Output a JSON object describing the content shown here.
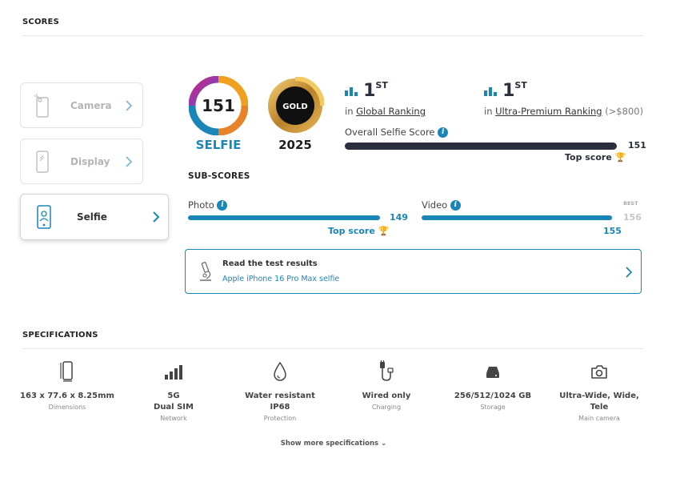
{
  "scores_section": {
    "title": "SCORES"
  },
  "categories": [
    {
      "label": "Camera",
      "icon": "camera-phone-icon",
      "active": false
    },
    {
      "label": "Display",
      "icon": "display-phone-icon",
      "active": false
    },
    {
      "label": "Selfie",
      "icon": "selfie-phone-icon",
      "active": true
    }
  ],
  "selfie_badge": {
    "score": "151",
    "caption": "SELFIE"
  },
  "gold_badge": {
    "label": "GOLD",
    "year": "2025"
  },
  "rankings": [
    {
      "rank": "1",
      "suffix": "ST",
      "prefix": "in",
      "link": "Global Ranking",
      "extra": ""
    },
    {
      "rank": "1",
      "suffix": "ST",
      "prefix": "in",
      "link": "Ultra-Premium Ranking",
      "extra": "(>$800)"
    }
  ],
  "overall": {
    "label": "Overall Selfie Score",
    "score": "151",
    "fraction": 1.0,
    "top_score": "Top score"
  },
  "sub_scores": {
    "title": "SUB-SCORES",
    "photo": {
      "label": "Photo",
      "score": "149",
      "fraction": 1.0,
      "top_score": "Top score"
    },
    "video": {
      "label": "Video",
      "score": "155",
      "best_label": "BEST",
      "best_score": "156",
      "fraction": 0.99
    }
  },
  "test_results": {
    "title": "Read the test results",
    "link": "Apple iPhone 16 Pro Max selfie"
  },
  "specs_section": {
    "title": "SPECIFICATIONS"
  },
  "specs": [
    {
      "value": "163 x 77.6 x 8.25mm",
      "caption": "Dimensions",
      "icon": "phone-dimensions-icon"
    },
    {
      "value": "5G\nDual SIM",
      "caption": "Network",
      "icon": "signal-bars-icon"
    },
    {
      "value": "Water resistant\nIP68",
      "caption": "Protection",
      "icon": "water-drop-icon"
    },
    {
      "value": "Wired only",
      "caption": "Charging",
      "icon": "charging-cable-icon"
    },
    {
      "value": "256/512/1024 GB",
      "caption": "Storage",
      "icon": "storage-drive-icon"
    },
    {
      "value": "Ultra-Wide, Wide,\nTele",
      "caption": "Main camera",
      "icon": "camera-icon"
    }
  ],
  "show_more": "Show more specifications",
  "colors": {
    "accent": "#1a86b8",
    "dark_bar": "#2b2f3d",
    "gold": "#e8a317"
  }
}
